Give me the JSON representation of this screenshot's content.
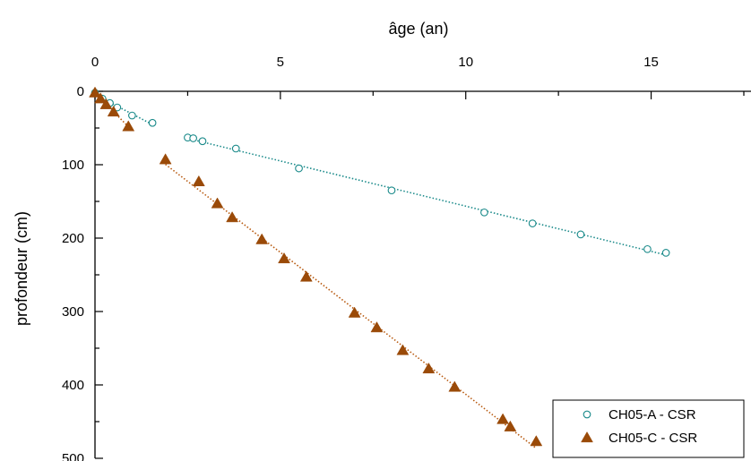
{
  "chart_data": {
    "type": "scatter",
    "xlabel": "âge (an)",
    "ylabel": "profondeur (cm)",
    "x_axis_position": "top",
    "y_inverted": true,
    "xlim": [
      0,
      17.5
    ],
    "ylim": [
      0,
      500
    ],
    "x_ticks": [
      0,
      5,
      10,
      15
    ],
    "y_ticks": [
      0,
      100,
      200,
      300,
      400,
      500
    ],
    "grid": false,
    "legend_position": "bottom-right",
    "series": [
      {
        "name": "CH05-A - CSR",
        "marker": "open-circle",
        "color": "#1a8a8a",
        "trend_color": "#1a8a8a",
        "x": [
          0.0,
          0.2,
          0.4,
          0.6,
          1.0,
          1.55,
          2.5,
          2.65,
          2.9,
          3.8,
          5.5,
          8.0,
          10.5,
          11.8,
          13.1,
          14.9,
          15.4
        ],
        "y": [
          2,
          10,
          16,
          22,
          33,
          43,
          63,
          64,
          68,
          78,
          105,
          135,
          165,
          180,
          195,
          215,
          220
        ]
      },
      {
        "name": "CH05-C - CSR",
        "marker": "filled-triangle",
        "color": "#9a4a08",
        "trend_color": "#b85a10",
        "x": [
          0.0,
          0.15,
          0.3,
          0.5,
          0.9,
          1.9,
          2.8,
          3.3,
          3.7,
          4.5,
          5.1,
          5.7,
          7.0,
          7.6,
          8.3,
          9.0,
          9.7,
          11.0,
          11.2,
          11.9
        ],
        "y": [
          2,
          10,
          18,
          28,
          48,
          93,
          123,
          153,
          172,
          202,
          228,
          253,
          302,
          322,
          353,
          378,
          403,
          447,
          457,
          477
        ]
      }
    ]
  }
}
